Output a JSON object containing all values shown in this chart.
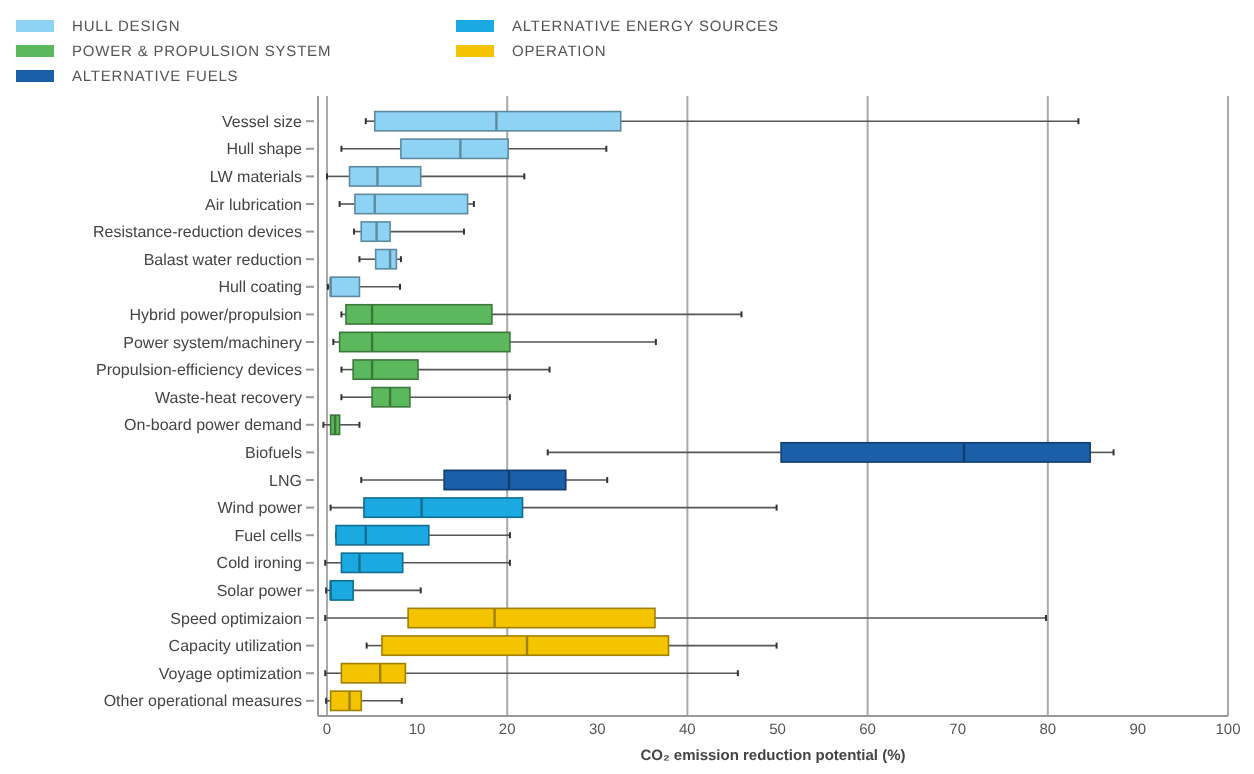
{
  "chart_data": {
    "type": "box",
    "orientation": "horizontal",
    "xlabel": "CO₂ emission reduction potential (%)",
    "categories": [
      "Vessel size",
      "Hull shape",
      "LW materials",
      "Air lubrication",
      "Resistance-reduction devices",
      "Balast water reduction",
      "Hull coating",
      "Hybrid power/propulsion",
      "Power system/machinery",
      "Propulsion-efficiency devices",
      "Waste-heat recovery",
      "On-board power demand",
      "Biofuels",
      "LNG",
      "Wind power",
      "Fuel cells",
      "Cold ironing",
      "Solar power",
      "Speed optimizaion",
      "Capacity utilization",
      "Voyage optimization",
      "Other operational measures"
    ],
    "xlim": [
      -1,
      100
    ],
    "xticks": [
      0,
      10,
      20,
      30,
      40,
      50,
      60,
      70,
      80,
      90,
      100
    ],
    "grid": "x",
    "legend": "top",
    "series": [
      {
        "name": "HULL DESIGN",
        "color": "#8fd3f4",
        "boxes": [
          {
            "low": 4.3,
            "q1": 5.3,
            "median": 18.8,
            "q3": 32.6,
            "high": 83.4
          },
          {
            "low": 1.6,
            "q1": 8.2,
            "median": 14.8,
            "q3": 20.1,
            "high": 31.0
          },
          {
            "low": 0,
            "q1": 2.5,
            "median": 5.6,
            "q3": 10.4,
            "high": 21.9
          },
          {
            "low": 1.4,
            "q1": 3.1,
            "median": 5.3,
            "q3": 15.6,
            "high": 16.3
          },
          {
            "low": 3.0,
            "q1": 3.8,
            "median": 5.5,
            "q3": 7.0,
            "high": 15.2
          },
          {
            "low": 3.6,
            "q1": 5.4,
            "median": 7.0,
            "q3": 7.7,
            "high": 8.2
          },
          {
            "low": 0.1,
            "q1": 0.4,
            "median": 0.4,
            "q3": 3.6,
            "high": 8.1
          },
          null,
          null,
          null,
          null,
          null,
          null,
          null,
          null,
          null,
          null,
          null,
          null,
          null,
          null,
          null
        ]
      },
      {
        "name": "POWER & PROPULSION SYSTEM",
        "color": "#5cb85c",
        "boxes": [
          null,
          null,
          null,
          null,
          null,
          null,
          null,
          {
            "low": 1.6,
            "q1": 2.1,
            "median": 5.0,
            "q3": 18.3,
            "high": 46.0
          },
          {
            "low": 0.7,
            "q1": 1.4,
            "median": 5.0,
            "q3": 20.3,
            "high": 36.5
          },
          {
            "low": 1.6,
            "q1": 2.9,
            "median": 5.0,
            "q3": 10.1,
            "high": 24.7
          },
          {
            "low": 1.6,
            "q1": 5.0,
            "median": 7.0,
            "q3": 9.2,
            "high": 20.3
          },
          {
            "low": -0.4,
            "q1": 0.4,
            "median": 0.9,
            "q3": 1.4,
            "high": 3.6
          },
          null,
          null,
          null,
          null,
          null,
          null,
          null,
          null,
          null,
          null
        ]
      },
      {
        "name": "ALTERNATIVE FUELS",
        "color": "#1a5fa8",
        "boxes": [
          null,
          null,
          null,
          null,
          null,
          null,
          null,
          null,
          null,
          null,
          null,
          null,
          {
            "low": 24.5,
            "q1": 50.4,
            "median": 70.7,
            "q3": 84.7,
            "high": 87.3
          },
          {
            "low": 3.8,
            "q1": 13.0,
            "median": 20.2,
            "q3": 26.5,
            "high": 31.1
          },
          null,
          null,
          null,
          null,
          null,
          null,
          null,
          null
        ]
      },
      {
        "name": "ALTERNATIVE ENERGY SOURCES",
        "color": "#1aa9e0",
        "boxes": [
          null,
          null,
          null,
          null,
          null,
          null,
          null,
          null,
          null,
          null,
          null,
          null,
          null,
          null,
          {
            "low": 0.4,
            "q1": 4.1,
            "median": 10.5,
            "q3": 21.7,
            "high": 49.9
          },
          {
            "low": 1.0,
            "q1": 1.0,
            "median": 4.3,
            "q3": 11.3,
            "high": 20.3
          },
          {
            "low": -0.2,
            "q1": 1.6,
            "median": 3.6,
            "q3": 8.4,
            "high": 20.3
          },
          {
            "low": -0.1,
            "q1": 0.4,
            "median": 0.4,
            "q3": 2.9,
            "high": 10.4
          },
          null,
          null,
          null,
          null
        ]
      },
      {
        "name": "OPERATION",
        "color": "#f5c400",
        "boxes": [
          null,
          null,
          null,
          null,
          null,
          null,
          null,
          null,
          null,
          null,
          null,
          null,
          null,
          null,
          null,
          null,
          null,
          null,
          {
            "low": -0.2,
            "q1": 9.0,
            "median": 18.6,
            "q3": 36.4,
            "high": 79.8
          },
          {
            "low": 4.4,
            "q1": 6.1,
            "median": 22.2,
            "q3": 37.9,
            "high": 49.9
          },
          {
            "low": -0.2,
            "q1": 1.6,
            "median": 5.9,
            "q3": 8.7,
            "high": 45.6
          },
          {
            "low": -0.1,
            "q1": 0.4,
            "median": 2.5,
            "q3": 3.8,
            "high": 8.3
          }
        ]
      }
    ]
  }
}
